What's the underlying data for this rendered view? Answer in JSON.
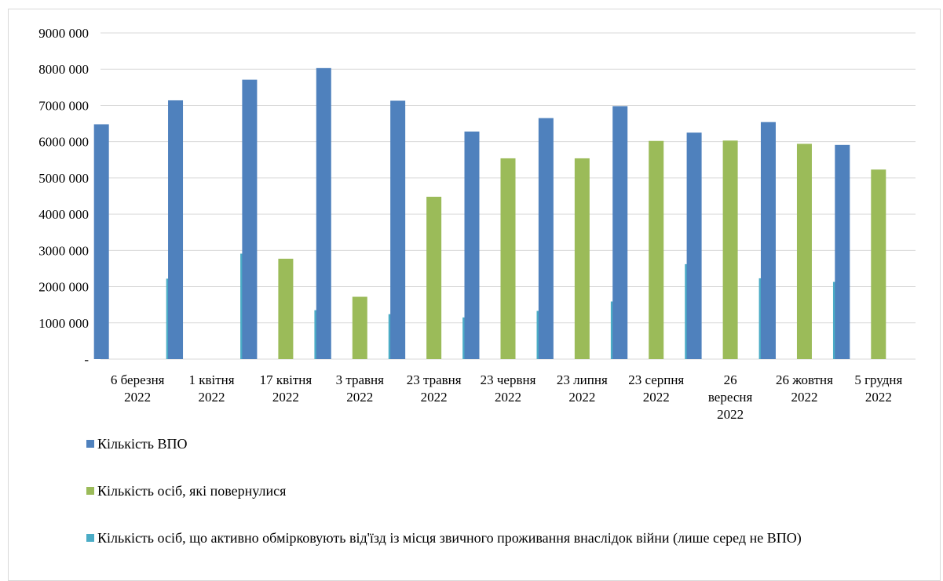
{
  "chart_data": {
    "type": "bar",
    "title": "",
    "xlabel": "",
    "ylabel": "",
    "ylim": [
      0,
      9000000
    ],
    "yticks": [
      {
        "value": 0,
        "label": "-"
      },
      {
        "value": 1000000,
        "label": "1000 000"
      },
      {
        "value": 2000000,
        "label": "2000 000"
      },
      {
        "value": 3000000,
        "label": "3000 000"
      },
      {
        "value": 4000000,
        "label": "4000 000"
      },
      {
        "value": 5000000,
        "label": "5000 000"
      },
      {
        "value": 6000000,
        "label": "6000 000"
      },
      {
        "value": 7000000,
        "label": "7000 000"
      },
      {
        "value": 8000000,
        "label": "8000 000"
      },
      {
        "value": 9000000,
        "label": "9000 000"
      }
    ],
    "grid": true,
    "legend_position": "bottom",
    "categories": [
      [
        "6 березня",
        "2022"
      ],
      [
        "1 квітня",
        "2022"
      ],
      [
        "17 квітня",
        "2022"
      ],
      [
        "3 травня",
        "2022"
      ],
      [
        "23 травня",
        "2022"
      ],
      [
        "23 червня",
        "2022"
      ],
      [
        "23 липня",
        "2022"
      ],
      [
        "23 серпня",
        "2022"
      ],
      [
        "26",
        "вересня",
        "2022"
      ],
      [
        "26 жовтня",
        "2022"
      ],
      [
        "5 грудня",
        "2022"
      ]
    ],
    "series": [
      {
        "name": "Кількість ВПО",
        "color": "#4f81bd",
        "values": [
          6480000,
          7140000,
          7710000,
          8030000,
          7130000,
          6280000,
          6650000,
          6980000,
          6250000,
          6540000,
          5910000
        ]
      },
      {
        "name": "Кількість осіб, які повернулися",
        "color": "#9bbb59",
        "values": [
          null,
          null,
          2770000,
          1720000,
          4480000,
          5540000,
          5540000,
          6020000,
          6030000,
          5940000,
          5230000
        ]
      },
      {
        "name": "Кількість осіб, що активно обмірковують від'їзд із місця звичного проживання внаслідок війни (лише серед не ВПО)",
        "color": "#4bacc6",
        "values": [
          2220000,
          2910000,
          1350000,
          1240000,
          1150000,
          1330000,
          1590000,
          2620000,
          2230000,
          2130000,
          null
        ]
      }
    ]
  }
}
